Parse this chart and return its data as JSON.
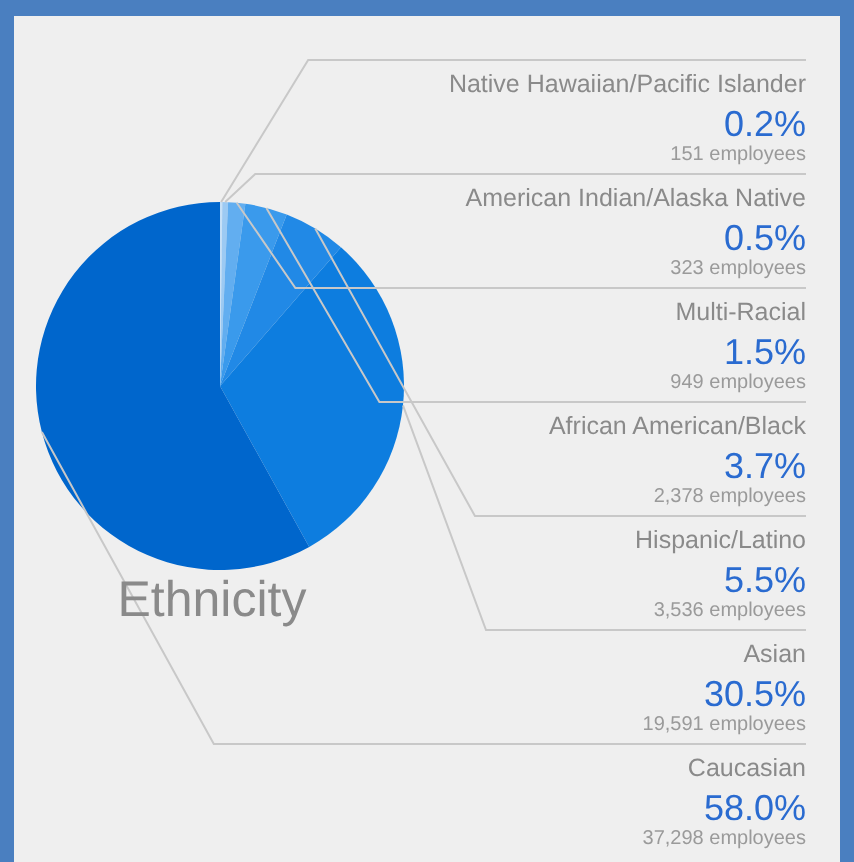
{
  "chart_data": {
    "type": "pie",
    "title": "Ethnicity",
    "categories": [
      "Native Hawaiian/Pacific Islander",
      "American Indian/Alaska Native",
      "Multi-Racial",
      "African American/Black",
      "Hispanic/Latino",
      "Asian",
      "Caucasian"
    ],
    "values": [
      0.2,
      0.5,
      1.5,
      3.7,
      5.5,
      30.5,
      58.0
    ],
    "value_labels": [
      "0.2%",
      "0.5%",
      "1.5%",
      "3.7%",
      "5.5%",
      "30.5%",
      "58.0%"
    ],
    "colors": [
      "#c6e0f7",
      "#9ccaf3",
      "#62aef0",
      "#3a9aec",
      "#2189e6",
      "#0d7ddf",
      "#0066cc"
    ],
    "annotations": [
      "151 employees",
      "323 employees",
      "949 employees",
      "2,378 employees",
      "3,536 employees",
      "19,591 employees",
      "37,298 employees"
    ]
  }
}
